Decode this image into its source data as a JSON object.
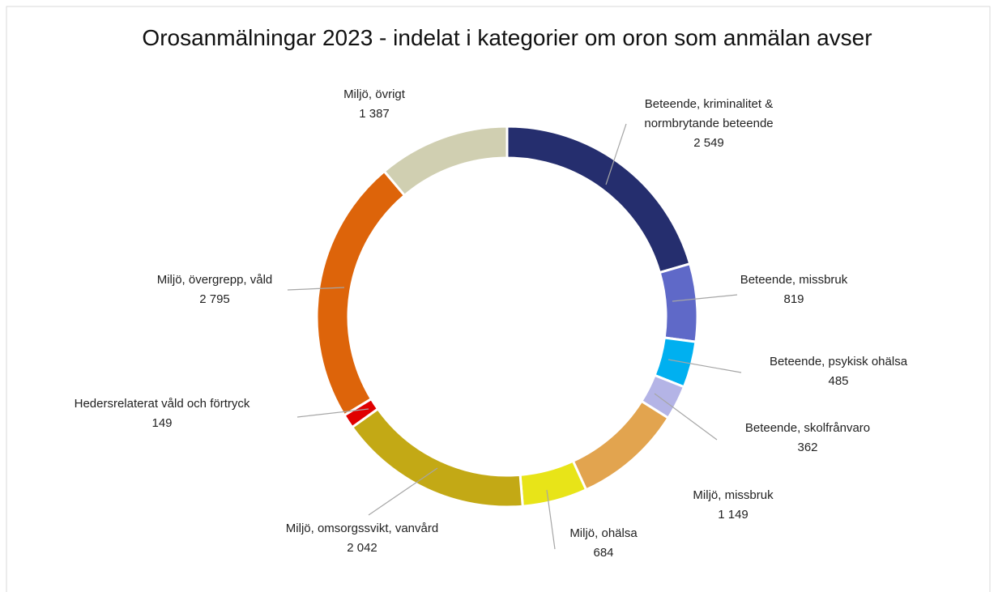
{
  "chart_data": {
    "type": "donut",
    "title": "Orosanmälningar 2023 - indelat i kategorier om oron som anmälan avser",
    "categories": [
      "Beteende, kriminalitet & normbrytande beteende",
      "Beteende, missbruk",
      "Beteende, psykisk ohälsa",
      "Beteende, skolfrånvaro",
      "Miljö, missbruk",
      "Miljö, ohälsa",
      "Miljö, omsorgssvikt, vanvård",
      "Hedersrelaterat våld och förtryck",
      "Miljö, övergrepp, våld",
      "Miljö, övrigt"
    ],
    "values": [
      2549,
      819,
      485,
      362,
      1149,
      684,
      2042,
      149,
      2795,
      1387
    ],
    "value_labels": [
      "2 549",
      "819",
      "485",
      "362",
      "1 149",
      "684",
      "2 042",
      "149",
      "2 795",
      "1 387"
    ],
    "colors": [
      "#252e6e",
      "#5f69c8",
      "#00b0f0",
      "#b4b4e6",
      "#e2a44f",
      "#e8e418",
      "#c3a915",
      "#e00000",
      "#dd640a",
      "#d0cfb1"
    ]
  }
}
